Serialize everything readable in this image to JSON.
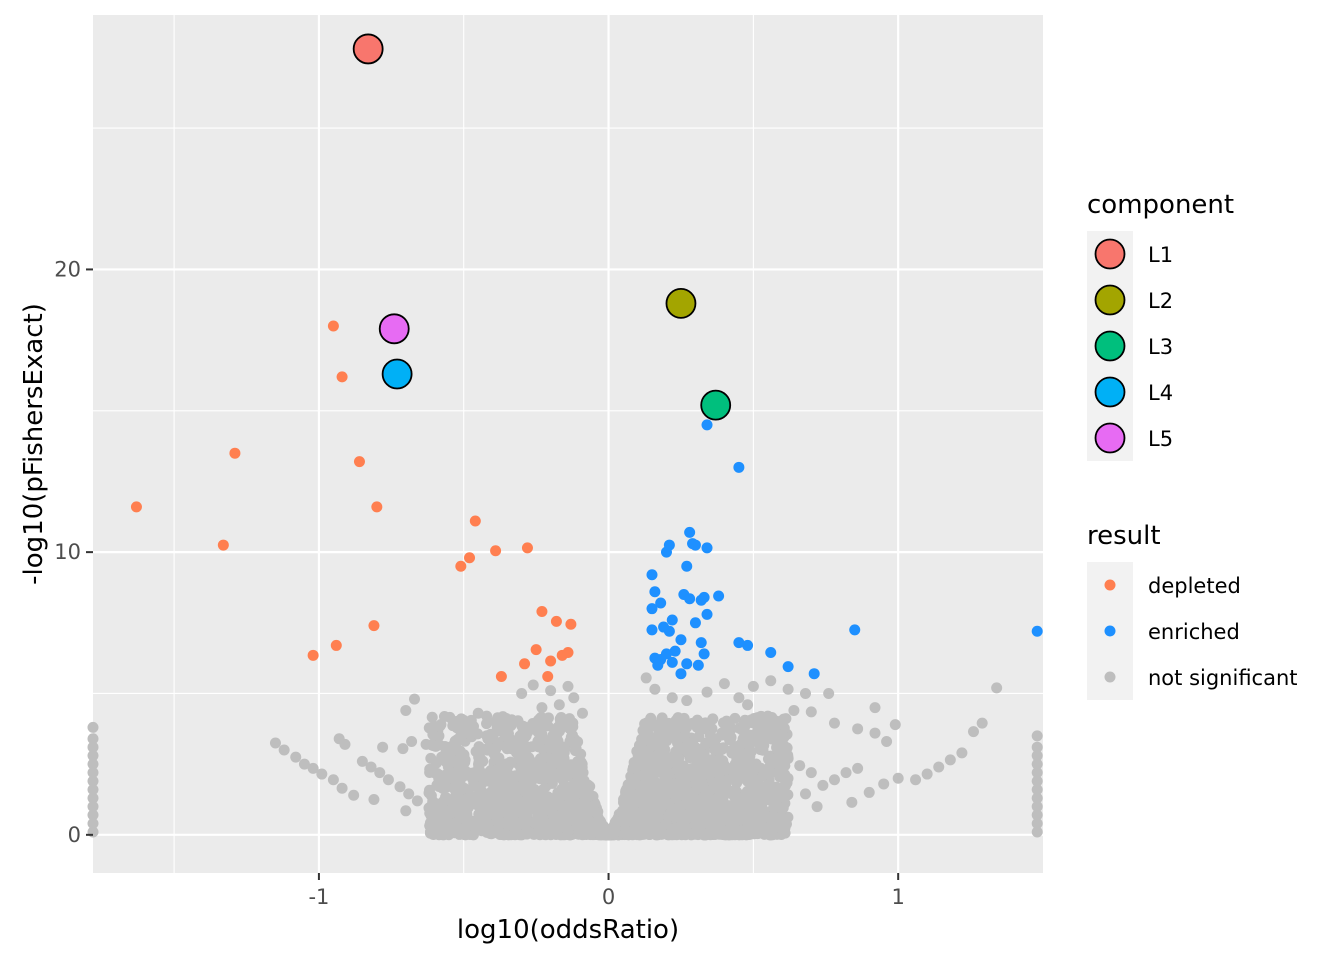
{
  "chart_data": {
    "type": "scatter",
    "title": "",
    "xlabel": "log10(oddsRatio)",
    "ylabel": "-log10(pFishersExact)",
    "xlim": [
      -1.78,
      1.5
    ],
    "ylim": [
      -1.35,
      29.0
    ],
    "x_ticks": [
      -1,
      0,
      1
    ],
    "x_tick_labels": [
      "-1",
      "0",
      "1"
    ],
    "y_ticks": [
      0,
      10,
      20
    ],
    "y_tick_labels": [
      "0",
      "10",
      "20"
    ],
    "grid": true,
    "legend_position": "right",
    "legends": [
      {
        "title": "component",
        "entries": [
          {
            "label": "L1",
            "color": "#F8766D"
          },
          {
            "label": "L2",
            "color": "#A3A500"
          },
          {
            "label": "L3",
            "color": "#00BF7D"
          },
          {
            "label": "L4",
            "color": "#00B0F6"
          },
          {
            "label": "L5",
            "color": "#E76BF3"
          }
        ]
      },
      {
        "title": "result",
        "entries": [
          {
            "label": "depleted",
            "color": "#FF7F50"
          },
          {
            "label": "enriched",
            "color": "#1E90FF"
          },
          {
            "label": "not significant",
            "color": "#BEBEBE"
          }
        ]
      }
    ],
    "components": [
      {
        "name": "L1",
        "x": -0.83,
        "y": 27.8,
        "color": "#F8766D"
      },
      {
        "name": "L2",
        "x": 0.25,
        "y": 18.8,
        "color": "#A3A500"
      },
      {
        "name": "L3",
        "x": 0.37,
        "y": 15.2,
        "color": "#00BF7D"
      },
      {
        "name": "L4",
        "x": -0.73,
        "y": 16.3,
        "color": "#00B0F6"
      },
      {
        "name": "L5",
        "x": -0.74,
        "y": 17.9,
        "color": "#E76BF3"
      }
    ],
    "series": [
      {
        "name": "depleted",
        "color": "#FF7F50",
        "points": [
          [
            -1.63,
            11.6
          ],
          [
            -1.33,
            10.25
          ],
          [
            -1.29,
            13.5
          ],
          [
            -0.95,
            18.0
          ],
          [
            -0.92,
            16.2
          ],
          [
            -0.86,
            13.2
          ],
          [
            -0.8,
            11.6
          ],
          [
            -0.81,
            7.4
          ],
          [
            -1.02,
            6.35
          ],
          [
            -0.94,
            6.7
          ],
          [
            -0.46,
            11.1
          ],
          [
            -0.48,
            9.8
          ],
          [
            -0.51,
            9.5
          ],
          [
            -0.39,
            10.05
          ],
          [
            -0.28,
            10.15
          ],
          [
            -0.23,
            7.9
          ],
          [
            -0.18,
            7.55
          ],
          [
            -0.13,
            7.45
          ],
          [
            -0.25,
            6.55
          ],
          [
            -0.2,
            6.15
          ],
          [
            -0.16,
            6.35
          ],
          [
            -0.14,
            6.45
          ],
          [
            -0.29,
            6.05
          ],
          [
            -0.21,
            5.6
          ],
          [
            -0.37,
            5.6
          ]
        ]
      },
      {
        "name": "enriched",
        "color": "#1E90FF",
        "points": [
          [
            0.34,
            14.5
          ],
          [
            0.45,
            13.0
          ],
          [
            0.28,
            10.7
          ],
          [
            0.29,
            10.3
          ],
          [
            0.3,
            10.25
          ],
          [
            0.34,
            10.15
          ],
          [
            0.21,
            10.25
          ],
          [
            0.2,
            10.0
          ],
          [
            0.27,
            9.5
          ],
          [
            0.15,
            9.2
          ],
          [
            0.16,
            8.6
          ],
          [
            0.18,
            8.2
          ],
          [
            0.15,
            8.0
          ],
          [
            0.26,
            8.5
          ],
          [
            0.28,
            8.35
          ],
          [
            0.32,
            8.3
          ],
          [
            0.33,
            8.4
          ],
          [
            0.38,
            8.45
          ],
          [
            0.34,
            7.8
          ],
          [
            0.22,
            7.6
          ],
          [
            0.3,
            7.5
          ],
          [
            0.19,
            7.35
          ],
          [
            0.21,
            7.2
          ],
          [
            0.15,
            7.25
          ],
          [
            0.25,
            6.9
          ],
          [
            0.32,
            6.8
          ],
          [
            0.23,
            6.5
          ],
          [
            0.2,
            6.4
          ],
          [
            0.33,
            6.4
          ],
          [
            0.16,
            6.25
          ],
          [
            0.18,
            6.2
          ],
          [
            0.22,
            6.1
          ],
          [
            0.27,
            6.05
          ],
          [
            0.31,
            6.0
          ],
          [
            0.17,
            6.0
          ],
          [
            0.25,
            5.7
          ],
          [
            0.45,
            6.8
          ],
          [
            0.48,
            6.7
          ],
          [
            0.56,
            6.45
          ],
          [
            0.62,
            5.95
          ],
          [
            0.71,
            5.7
          ],
          [
            0.85,
            7.25
          ],
          [
            1.48,
            7.2
          ]
        ]
      },
      {
        "name": "not significant",
        "color": "#BEBEBE",
        "points": [
          [
            -1.78,
            0.1
          ],
          [
            -1.78,
            0.4
          ],
          [
            -1.78,
            0.7
          ],
          [
            -1.78,
            1.0
          ],
          [
            -1.78,
            1.3
          ],
          [
            -1.78,
            1.6
          ],
          [
            -1.78,
            1.9
          ],
          [
            -1.78,
            2.2
          ],
          [
            -1.78,
            2.5
          ],
          [
            -1.78,
            2.8
          ],
          [
            -1.78,
            3.1
          ],
          [
            -1.78,
            3.4
          ],
          [
            -1.78,
            3.8
          ],
          [
            -1.15,
            3.25
          ],
          [
            -1.12,
            3.0
          ],
          [
            -1.08,
            2.75
          ],
          [
            -1.05,
            2.5
          ],
          [
            -1.02,
            2.35
          ],
          [
            -0.99,
            2.15
          ],
          [
            -0.95,
            1.95
          ],
          [
            -0.92,
            1.65
          ],
          [
            -0.88,
            1.4
          ],
          [
            -0.85,
            2.6
          ],
          [
            -0.82,
            2.4
          ],
          [
            -0.79,
            2.2
          ],
          [
            -0.76,
            1.95
          ],
          [
            -0.72,
            1.7
          ],
          [
            -0.69,
            1.45
          ],
          [
            -0.66,
            1.2
          ],
          [
            -0.62,
            0.95
          ],
          [
            -0.58,
            0.75
          ],
          [
            -0.81,
            1.25
          ],
          [
            -0.7,
            0.85
          ],
          [
            -0.6,
            0.55
          ],
          [
            -0.93,
            3.4
          ],
          [
            -0.91,
            3.2
          ],
          [
            -0.78,
            3.1
          ],
          [
            -0.71,
            3.05
          ],
          [
            -0.68,
            3.3
          ],
          [
            -0.63,
            3.2
          ],
          [
            -0.7,
            4.4
          ],
          [
            -0.67,
            4.8
          ],
          [
            -0.5,
            4.05
          ],
          [
            -0.45,
            4.3
          ],
          [
            -0.39,
            4.0
          ],
          [
            -0.34,
            4.05
          ],
          [
            -0.3,
            5.0
          ],
          [
            -0.26,
            5.3
          ],
          [
            -0.2,
            5.1
          ],
          [
            -0.17,
            4.6
          ],
          [
            -0.14,
            5.25
          ],
          [
            -0.12,
            4.85
          ],
          [
            -0.23,
            4.5
          ],
          [
            -0.09,
            4.3
          ],
          [
            1.34,
            5.2
          ],
          [
            1.29,
            3.95
          ],
          [
            1.26,
            3.65
          ],
          [
            1.22,
            2.9
          ],
          [
            1.18,
            2.65
          ],
          [
            1.14,
            2.4
          ],
          [
            1.1,
            2.15
          ],
          [
            1.06,
            1.95
          ],
          [
            1.0,
            2.0
          ],
          [
            0.95,
            1.8
          ],
          [
            0.9,
            1.5
          ],
          [
            0.84,
            1.15
          ],
          [
            0.72,
            1.0
          ],
          [
            0.6,
            0.95
          ],
          [
            0.78,
            1.95
          ],
          [
            0.82,
            2.2
          ],
          [
            0.86,
            2.35
          ],
          [
            0.92,
            3.6
          ],
          [
            0.96,
            3.3
          ],
          [
            0.99,
            3.9
          ],
          [
            0.92,
            4.5
          ],
          [
            0.76,
            5.0
          ],
          [
            0.68,
            5.0
          ],
          [
            0.62,
            5.15
          ],
          [
            0.56,
            5.45
          ],
          [
            0.5,
            5.25
          ],
          [
            0.4,
            5.35
          ],
          [
            0.34,
            5.05
          ],
          [
            0.13,
            5.55
          ],
          [
            0.16,
            5.15
          ],
          [
            0.22,
            4.85
          ],
          [
            0.27,
            4.75
          ],
          [
            0.45,
            4.85
          ],
          [
            0.48,
            4.6
          ],
          [
            0.55,
            4.2
          ],
          [
            0.64,
            4.4
          ],
          [
            0.7,
            4.35
          ],
          [
            0.78,
            3.95
          ],
          [
            0.86,
            3.75
          ],
          [
            0.62,
            2.7
          ],
          [
            0.66,
            2.45
          ],
          [
            0.7,
            2.2
          ],
          [
            0.74,
            1.75
          ],
          [
            0.68,
            1.45
          ],
          [
            0.55,
            1.3
          ],
          [
            0.5,
            1.05
          ],
          [
            0.45,
            0.9
          ],
          [
            0.4,
            0.75
          ],
          [
            1.48,
            0.1
          ],
          [
            1.48,
            0.4
          ],
          [
            1.48,
            0.7
          ],
          [
            1.48,
            1.0
          ],
          [
            1.48,
            1.3
          ],
          [
            1.48,
            1.6
          ],
          [
            1.48,
            1.9
          ],
          [
            1.48,
            2.2
          ],
          [
            1.48,
            2.5
          ],
          [
            1.48,
            2.8
          ],
          [
            1.48,
            3.1
          ],
          [
            1.48,
            3.5
          ]
        ]
      }
    ]
  }
}
